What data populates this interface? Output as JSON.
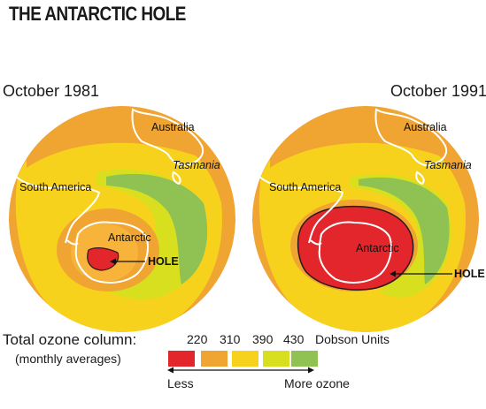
{
  "title": "THE ANTARCTIC HOLE",
  "maps": [
    {
      "date": "October 1981",
      "labels": {
        "australia": "Australia",
        "tasmania": "Tasmania",
        "south_america": "South America",
        "antarctic": "Antarctic",
        "hole": "HOLE"
      }
    },
    {
      "date": "October 1991",
      "labels": {
        "australia": "Australia",
        "tasmania": "Tasmania",
        "south_america": "South America",
        "antarctic": "Antarctic",
        "hole": "HOLE"
      }
    }
  ],
  "legend": {
    "title": "Total ozone column:",
    "subtitle": "(monthly averages)",
    "ticks": [
      "220",
      "310",
      "390",
      "430"
    ],
    "units": "Dobson Units",
    "colors": [
      "#e2262b",
      "#f0a432",
      "#f7d21d",
      "#d7df1f",
      "#8fc153"
    ],
    "less": "Less",
    "more": "More ozone"
  },
  "colors": {
    "ocean_yellow": "#f7d21d",
    "orange": "#f0a432",
    "hole_red": "#e2262b",
    "green": "#8fc153",
    "coastline": "#ffffff"
  }
}
